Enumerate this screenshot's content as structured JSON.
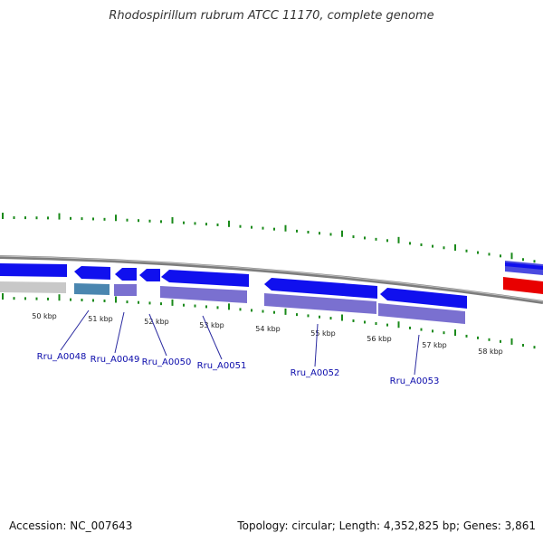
{
  "title": "Rhodospirillum rubrum ATCC 11170, complete genome",
  "footer": {
    "accession": "Accession: NC_007643",
    "summary": "Topology: circular; Length: 4,352,825 bp; Genes: 3,861"
  },
  "scale_labels": [
    "50 kbp",
    "51 kbp",
    "52 kbp",
    "53 kbp",
    "54 kbp",
    "55 kbp",
    "56 kbp",
    "57 kbp",
    "58 kbp"
  ],
  "gene_labels": [
    "Rru_A0048",
    "Rru_A0049",
    "Rru_A0050",
    "Rru_A0051",
    "Rru_A0052",
    "Rru_A0053"
  ],
  "colors": {
    "cds": "#1010ee",
    "gene": "#7a70d0",
    "highlight": "#e80000",
    "rrna": "#c8c8c8",
    "steel": "#4a86b0",
    "backbone": "#808080",
    "gc_tick": "#1a8a1a",
    "label": "#0b0bab"
  }
}
